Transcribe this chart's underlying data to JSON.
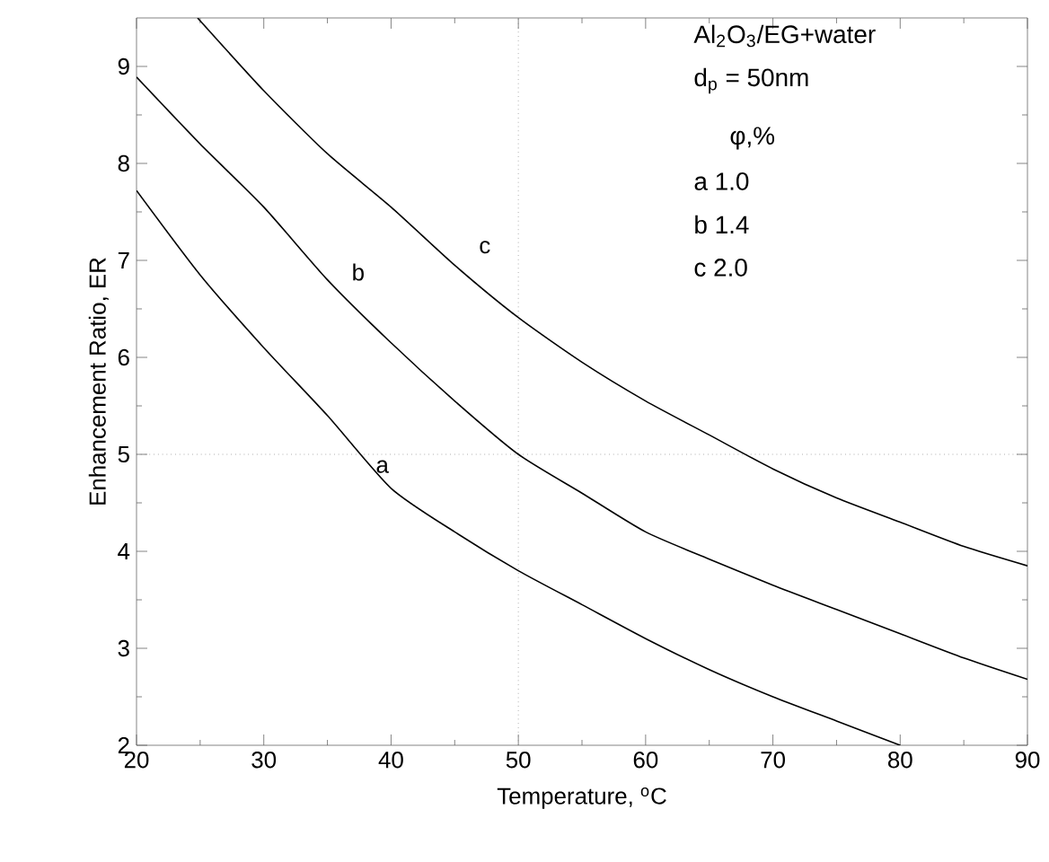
{
  "chart_data": {
    "type": "line",
    "xlabel": "Temperature, $^{o}$C",
    "ylabel": "Enhancement Ratio, ER",
    "xlim": [
      20,
      90
    ],
    "ylim": [
      2,
      9.5
    ],
    "xticks": [
      20,
      30,
      40,
      50,
      60,
      70,
      80,
      90
    ],
    "yticks": [
      2,
      3,
      4,
      5,
      6,
      7,
      8,
      9
    ],
    "grid": false,
    "legend": false,
    "marker": "none",
    "line_style": "solid",
    "series": [
      {
        "name": "a",
        "color": "#000000",
        "x": [
          20,
          25,
          30,
          35,
          40,
          45,
          50,
          55,
          60,
          65,
          70,
          75,
          80
        ],
        "values": [
          7.72,
          6.85,
          6.1,
          5.4,
          4.65,
          4.2,
          3.8,
          3.45,
          3.1,
          2.78,
          2.5,
          2.25,
          2.0
        ]
      },
      {
        "name": "b",
        "color": "#000000",
        "x": [
          20,
          25,
          30,
          35,
          40,
          45,
          50,
          55,
          60,
          65,
          70,
          75,
          80,
          85,
          90
        ],
        "values": [
          8.89,
          8.2,
          7.55,
          6.8,
          6.15,
          5.55,
          5.0,
          4.6,
          4.2,
          3.92,
          3.65,
          3.4,
          3.15,
          2.9,
          2.68
        ]
      },
      {
        "name": "c",
        "color": "#000000",
        "x": [
          24.8,
          30,
          35,
          40,
          45,
          50,
          55,
          60,
          65,
          70,
          75,
          80,
          85,
          90
        ],
        "values": [
          9.5,
          8.75,
          8.1,
          7.55,
          6.95,
          6.41,
          5.95,
          5.55,
          5.2,
          4.85,
          4.55,
          4.3,
          4.05,
          3.85
        ]
      }
    ],
    "ref_lines": [
      {
        "axis": "x",
        "value": 50,
        "line_style": "dotted"
      },
      {
        "axis": "y",
        "value": 5,
        "line_style": "dotted"
      }
    ],
    "annotations": [
      "Al$_{2}$O$_{3}$/EG+water",
      "d$_{p}$ = 50nm",
      "φ,%",
      "a    1.0",
      "b    1.4",
      "c     2.0"
    ]
  }
}
